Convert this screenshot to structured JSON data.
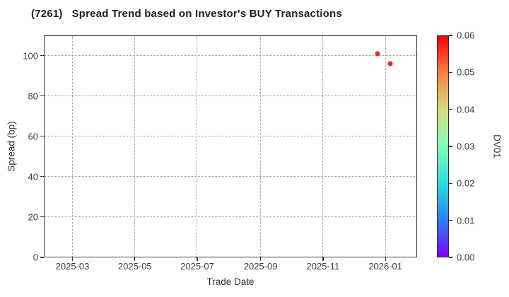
{
  "title": {
    "code": "(7261)",
    "text": "Spread Trend based on Investor's BUY Transactions"
  },
  "chart_data": {
    "type": "scatter",
    "title": "(7261) Spread Trend based on Investor's BUY Transactions",
    "xlabel": "Trade Date",
    "ylabel": "Spread (bp)",
    "xlim": [
      "2025-02-01",
      "2026-02-01"
    ],
    "ylim": [
      0,
      110
    ],
    "x_ticks": [
      {
        "date": "2025-03-01",
        "label": "2025-03"
      },
      {
        "date": "2025-05-01",
        "label": "2025-05"
      },
      {
        "date": "2025-07-01",
        "label": "2025-07"
      },
      {
        "date": "2025-09-01",
        "label": "2025-09"
      },
      {
        "date": "2025-11-01",
        "label": "2025-11"
      },
      {
        "date": "2026-01-01",
        "label": "2026-01"
      }
    ],
    "y_ticks": [
      0,
      20,
      40,
      60,
      80,
      100
    ],
    "grid": "dotted",
    "legend_position": "none",
    "points": [
      {
        "date": "2025-12-24",
        "spread_bp": 101,
        "dv01": 0.057
      },
      {
        "date": "2026-01-06",
        "spread_bp": 96,
        "dv01": 0.057
      }
    ],
    "point_color": "#f5291a",
    "colorbar": {
      "label": "DV01",
      "min": 0.0,
      "max": 0.06,
      "tick_labels": [
        "0.00",
        "0.01",
        "0.02",
        "0.03",
        "0.04",
        "0.05",
        "0.06"
      ],
      "colormap": "rainbow",
      "gradient_stops_bottom_to_top": [
        "#8000ff",
        "#2b80f6",
        "#2bdddd",
        "#80ffb5",
        "#d5dd80",
        "#ff8042",
        "#ff0000"
      ]
    }
  },
  "colors": {
    "background": "#ffffff",
    "spine": "#3a3a3a",
    "grid": "#9a9a9a",
    "tick_text": "#3d3d3d",
    "title_text": "#1f1f1f"
  }
}
